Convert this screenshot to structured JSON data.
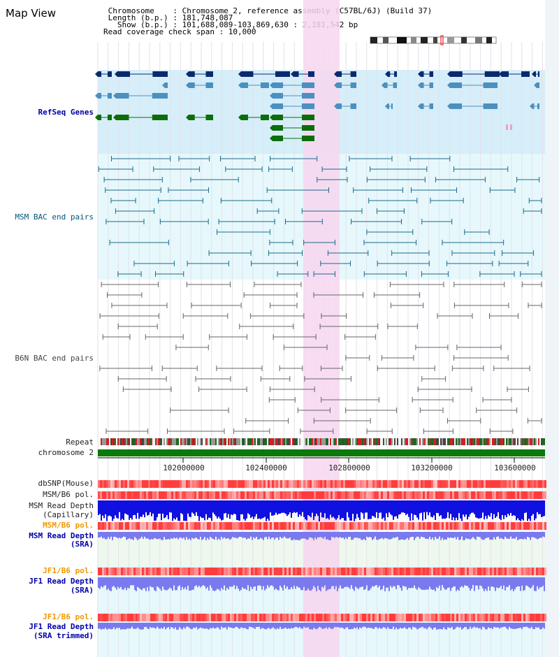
{
  "header": {
    "title": "Map View",
    "info": [
      " Chromosome    : Chromosome 2, reference assembly (C57BL/6J) (Build 37)",
      " Length (b.p.) : 181,748,087",
      "   Show (b.p.) : 101,688,089-103,869,630 : 2,181,542 bp",
      "Read coverage check span : 10,000"
    ]
  },
  "tracks": {
    "refseq": "RefSeq Genes",
    "msm_bac": "MSM BAC end pairs",
    "b6n_bac": "B6N BAC end pairs",
    "repeat": "Repeat",
    "chromosome": "chromosome 2",
    "dbsnp": "dbSNP(Mouse)",
    "msm_b6_pol_1": "MSM/B6 pol.",
    "msm_read_depth_cap": [
      "MSM Read Depth",
      "(Capillary)"
    ],
    "msm_b6_pol_2": "MSM/B6 pol.",
    "msm_read_depth_sra": [
      "MSM Read Depth",
      "(SRA)"
    ],
    "jf1_b6_pol_1": "JF1/B6 pol.",
    "jf1_read_depth_sra": [
      "JF1 Read Depth",
      "(SRA)"
    ],
    "jf1_b6_pol_2": "JF1/B6 pol.",
    "jf1_read_depth_trim": [
      "JF1 Read Depth",
      "(SRA trimmed)"
    ]
  },
  "axis": {
    "ticks": [
      "102000000",
      "102400000",
      "102800000",
      "103200000",
      "103600000"
    ]
  },
  "colors": {
    "refseq_bg": "#d6eef9",
    "msm_bg": "#e6f8fb",
    "highlight": "#f7d6ef",
    "navy": "#0a2a6e",
    "steel": "#4a90c0",
    "green": "#0b6e0b",
    "depth_blue": "#1010e0",
    "depth_violet": "#7a7aee"
  }
}
